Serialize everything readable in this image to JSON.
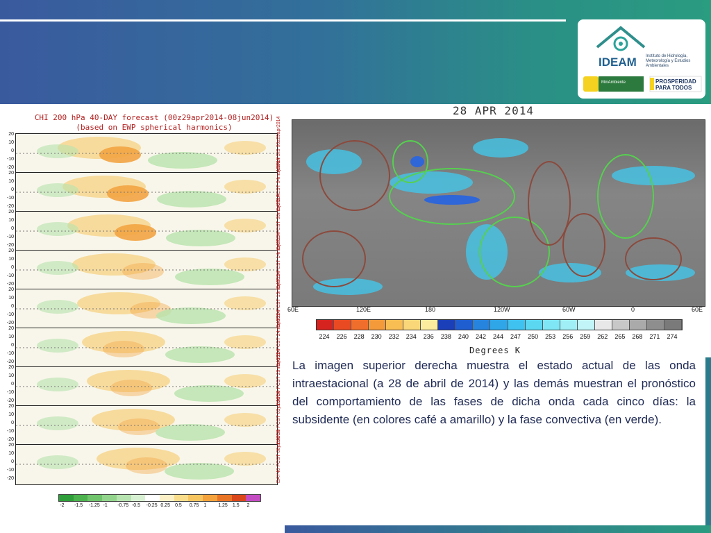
{
  "slide": {
    "logo": {
      "name": "IDEAM",
      "subtitle": "Instituto de Hidrología, Meteorología y Estudios Ambientales",
      "badge_left": "MinAmbiente",
      "badge_right": "PROSPERIDAD PARA TODOS"
    },
    "description": "La imagen superior derecha muestra el estado actual de las onda intraestacional (a 28 de abril de 2014) y las demás muestran el pronóstico del comportamiento de las fases de dicha onda cada cinco días: la subsidente (en colores café a amarillo) y la fase convectiva (en verde)."
  },
  "left_figure": {
    "title": "CHI 200 hPa 40-DAY forecast (00z29apr2014-08jun2014)",
    "subtitle": "(based on EWP spherical harmonics)",
    "y_ticks": [
      "20",
      "10",
      "0",
      "-10",
      "-20"
    ],
    "panels": [
      {
        "label": "ANALYSIS 00z29apr2014"
      },
      {
        "label": "DAY5 FCST 04may2014"
      },
      {
        "label": "DAY10 FCST 09may2014"
      },
      {
        "label": "DAY15 FCST 14may2014"
      },
      {
        "label": "DAY20 FCST 19may2014"
      },
      {
        "label": "DAY25 FCST 24may2014"
      },
      {
        "label": "DAY30 FCST 29may2014"
      },
      {
        "label": "DAY35 FCST 03jun2014"
      },
      {
        "label": "DAY40 FCST 08jun2014"
      }
    ],
    "colorbar_labels": [
      "-2",
      "-1.5",
      "-1.25",
      "-1",
      "-0.75",
      "-0.5",
      "-0.25",
      "0.25",
      "0.5",
      "0.75",
      "1",
      "1.25",
      "1.5",
      "2"
    ],
    "colorbar_colors": [
      "#2e9e3a",
      "#4bb24d",
      "#6fc46c",
      "#92d48c",
      "#b7e3b0",
      "#d8f0d2",
      "#ffffff",
      "#fbf0c6",
      "#f9dd8a",
      "#f7c560",
      "#f3a23c",
      "#ea7426",
      "#d9471b",
      "#c34cc3"
    ]
  },
  "right_figure": {
    "title": "28 APR 2014",
    "x_ticks": [
      "60E",
      "120E",
      "180",
      "120W",
      "60W",
      "0",
      "60E"
    ],
    "colorbar_labels": [
      "224",
      "226",
      "228",
      "230",
      "232",
      "234",
      "236",
      "238",
      "240",
      "242",
      "244",
      "247",
      "250",
      "253",
      "256",
      "259",
      "262",
      "265",
      "268",
      "271",
      "274"
    ],
    "colorbar_colors": [
      "#d6231f",
      "#e94a22",
      "#f06e2b",
      "#f59a3a",
      "#f8bd53",
      "#fad87a",
      "#fbec9e",
      "#1b3fb8",
      "#1f5ed0",
      "#2684de",
      "#2ea6e8",
      "#3fc2ef",
      "#5cd7f2",
      "#7ee6f4",
      "#a0eff6",
      "#c2f5f8",
      "#e8e8e8",
      "#c8c8c8",
      "#aaaaaa",
      "#8e8e8e",
      "#7a7a7a"
    ],
    "axis_unit": "Degrees K"
  }
}
